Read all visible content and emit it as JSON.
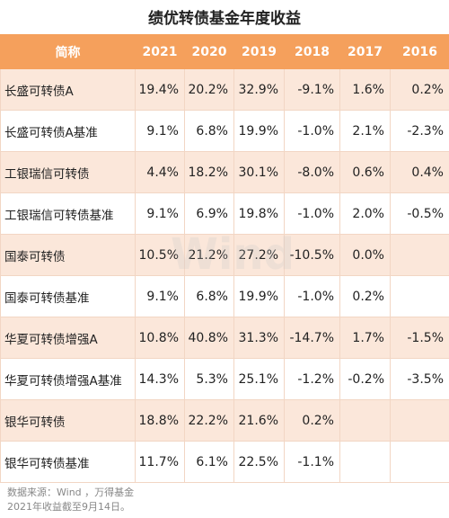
{
  "header": {
    "title": "绩优转债基金年度收益"
  },
  "table": {
    "columns": [
      "简称",
      "2021",
      "2020",
      "2019",
      "2018",
      "2017",
      "2016"
    ],
    "rows": [
      [
        "长盛可转债A",
        "19.4%",
        "20.2%",
        "32.9%",
        "-9.1%",
        "1.6%",
        "0.2%"
      ],
      [
        "长盛可转债A基准",
        "9.1%",
        "6.8%",
        "19.9%",
        "-1.0%",
        "2.1%",
        "-2.3%"
      ],
      [
        "工银瑞信可转债",
        "4.4%",
        "18.2%",
        "30.1%",
        "-8.0%",
        "0.6%",
        "0.4%"
      ],
      [
        "工银瑞信可转债基准",
        "9.1%",
        "6.9%",
        "19.8%",
        "-1.0%",
        "2.0%",
        "-0.5%"
      ],
      [
        "国泰可转债",
        "10.5%",
        "21.2%",
        "27.2%",
        "-10.5%",
        "0.0%"
      ],
      [
        "国泰可转债基准",
        "9.1%",
        "6.8%",
        "19.9%",
        "-1.0%",
        "0.2%"
      ],
      [
        "华夏可转债增强A",
        "10.8%",
        "40.8%",
        "31.3%",
        "-14.7%",
        "1.7%",
        "-1.5%"
      ],
      [
        "华夏可转债增强A基准",
        "14.3%",
        "5.3%",
        "25.1%",
        "-1.2%",
        "-0.2%",
        "-3.5%"
      ],
      [
        "银华可转债",
        "18.8%",
        "22.2%",
        "21.6%",
        "0.2%"
      ],
      [
        "银华可转债基准",
        "11.7%",
        "6.1%",
        "22.5%",
        "-1.1%"
      ]
    ]
  },
  "watermark": "Wind",
  "footer": [
    "数据来源：Wind ，万得基金",
    "2021年收益截至9月14日。"
  ]
}
